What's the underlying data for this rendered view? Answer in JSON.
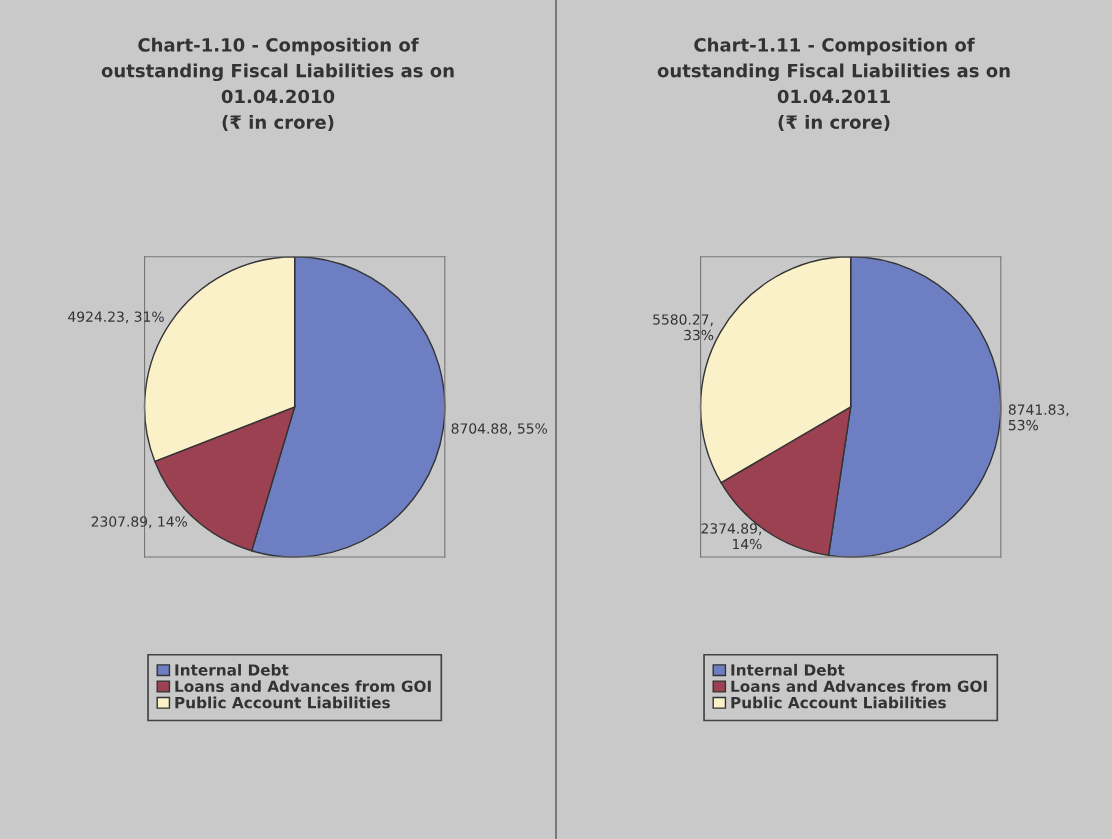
{
  "chart_data": [
    {
      "type": "pie",
      "title": "Chart-1.10 - Composition of\noutstanding Fiscal Liabilities as on\n01.04.2010\n(₹ in crore)",
      "categories": [
        "Internal Debt",
        "Loans and Advances from GOI",
        "Public Account Liabilities"
      ],
      "values": [
        8704.88,
        2307.89,
        4924.23
      ],
      "value_labels": [
        "8704.88, 55%",
        "2307.89, 14%",
        "4924.23, 31%"
      ],
      "colors": [
        "#6d7fc2",
        "#9c4151",
        "#fbf1c8"
      ],
      "legend": "bottom"
    },
    {
      "type": "pie",
      "title": "Chart-1.11 - Composition of\noutstanding Fiscal Liabilities as on\n01.04.2011\n(₹ in crore)",
      "categories": [
        "Internal Debt",
        "Loans and Advances from GOI",
        "Public Account Liabilities"
      ],
      "values": [
        8741.83,
        2374.89,
        5580.27
      ],
      "value_labels": [
        "8741.83,\n53%",
        "2374.89,\n14%",
        "5580.27,\n33%"
      ],
      "colors": [
        "#6d7fc2",
        "#9c4151",
        "#fbf1c8"
      ],
      "legend": "bottom"
    }
  ]
}
